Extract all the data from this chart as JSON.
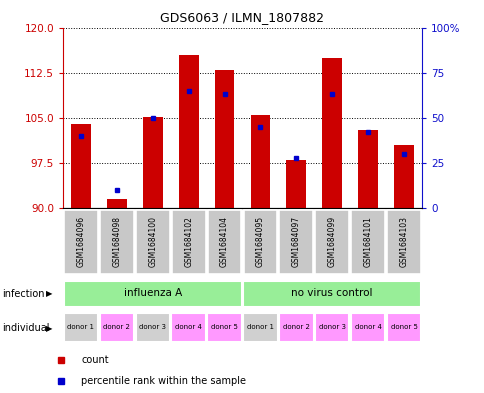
{
  "title": "GDS6063 / ILMN_1807882",
  "samples": [
    "GSM1684096",
    "GSM1684098",
    "GSM1684100",
    "GSM1684102",
    "GSM1684104",
    "GSM1684095",
    "GSM1684097",
    "GSM1684099",
    "GSM1684101",
    "GSM1684103"
  ],
  "count_values": [
    104.0,
    91.5,
    105.2,
    115.5,
    113.0,
    105.5,
    98.0,
    115.0,
    103.0,
    100.5
  ],
  "percentile_values": [
    40,
    10,
    50,
    65,
    63,
    45,
    28,
    63,
    42,
    30
  ],
  "ylim_left": [
    90,
    120
  ],
  "ylim_right": [
    0,
    100
  ],
  "yticks_left": [
    90,
    97.5,
    105,
    112.5,
    120
  ],
  "yticks_right": [
    0,
    25,
    50,
    75,
    100
  ],
  "infection_groups": [
    {
      "label": "influenza A",
      "start": 0,
      "end": 5
    },
    {
      "label": "no virus control",
      "start": 5,
      "end": 10
    }
  ],
  "individual_labels": [
    "donor 1",
    "donor 2",
    "donor 3",
    "donor 4",
    "donor 5",
    "donor 1",
    "donor 2",
    "donor 3",
    "donor 4",
    "donor 5"
  ],
  "indiv_colors": [
    "#D0D0D0",
    "#FF99FF",
    "#D0D0D0",
    "#FF99FF",
    "#FF99FF",
    "#D0D0D0",
    "#FF99FF",
    "#FF99FF",
    "#FF99FF",
    "#FF99FF"
  ],
  "sample_box_color": "#C8C8C8",
  "infection_color": "#98EE98",
  "bar_color": "#CC0000",
  "percentile_color": "#0000CC",
  "left_axis_color": "#CC0000",
  "right_axis_color": "#1010CC"
}
